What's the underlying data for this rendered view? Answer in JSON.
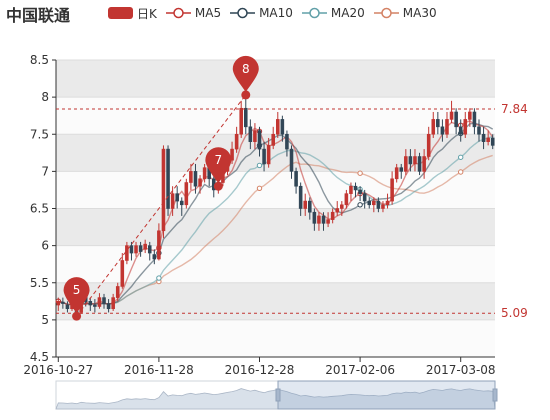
{
  "chart_data": {
    "type": "candlestick",
    "title": "中国联通",
    "legend": [
      {
        "name": "日K",
        "color": "#c23531"
      },
      {
        "name": "MA5",
        "color": "#c23531"
      },
      {
        "name": "MA10",
        "color": "#2f4554"
      },
      {
        "name": "MA20",
        "color": "#61a0a8"
      },
      {
        "name": "MA30",
        "color": "#d48265"
      }
    ],
    "ylim": [
      4.5,
      8.5
    ],
    "yticks": [
      "4.5",
      "5",
      "5.5",
      "6",
      "6.5",
      "7",
      "7.5",
      "8",
      "8.5"
    ],
    "xticks": [
      {
        "index": 0,
        "label": "2016-10-27"
      },
      {
        "index": 22,
        "label": "2016-11-28"
      },
      {
        "index": 44,
        "label": "2016-12-28"
      },
      {
        "index": 66,
        "label": "2017-02-06"
      },
      {
        "index": 88,
        "label": "2017-03-08"
      }
    ],
    "mark_lines": [
      {
        "value": 7.84,
        "label": "7.84"
      },
      {
        "value": 5.09,
        "label": "5.09"
      }
    ],
    "mark_points": [
      {
        "index": 4,
        "value": 5.05,
        "label": "5"
      },
      {
        "index": 35,
        "value": 6.8,
        "label": "7"
      },
      {
        "index": 41,
        "value": 8.03,
        "label": "8"
      }
    ],
    "ohlc": [
      [
        5.2,
        5.25,
        5.12,
        5.3
      ],
      [
        5.24,
        5.22,
        5.15,
        5.3
      ],
      [
        5.2,
        5.15,
        5.1,
        5.25
      ],
      [
        5.15,
        5.22,
        5.12,
        5.28
      ],
      [
        5.2,
        5.1,
        5.05,
        5.35
      ],
      [
        5.1,
        5.35,
        5.08,
        5.45
      ],
      [
        5.32,
        5.24,
        5.18,
        5.4
      ],
      [
        5.25,
        5.2,
        5.12,
        5.3
      ],
      [
        5.2,
        5.18,
        5.1,
        5.28
      ],
      [
        5.18,
        5.3,
        5.15,
        5.36
      ],
      [
        5.3,
        5.22,
        5.15,
        5.35
      ],
      [
        5.22,
        5.15,
        5.1,
        5.28
      ],
      [
        5.15,
        5.3,
        5.12,
        5.35
      ],
      [
        5.3,
        5.45,
        5.25,
        5.5
      ],
      [
        5.45,
        5.8,
        5.42,
        5.9
      ],
      [
        5.8,
        6.0,
        5.75,
        6.05
      ],
      [
        6.0,
        5.9,
        5.8,
        6.05
      ],
      [
        5.9,
        6.0,
        5.85,
        6.05
      ],
      [
        6.0,
        5.92,
        5.85,
        6.05
      ],
      [
        5.95,
        6.02,
        5.9,
        6.08
      ],
      [
        6.0,
        5.9,
        5.8,
        6.05
      ],
      [
        5.88,
        5.82,
        5.75,
        5.95
      ],
      [
        5.82,
        6.2,
        5.8,
        6.3
      ],
      [
        6.2,
        7.3,
        6.1,
        7.35
      ],
      [
        7.3,
        6.5,
        6.4,
        7.35
      ],
      [
        6.5,
        6.7,
        6.4,
        6.8
      ],
      [
        6.7,
        6.6,
        6.5,
        6.8
      ],
      [
        6.6,
        6.55,
        6.4,
        6.65
      ],
      [
        6.55,
        6.85,
        6.5,
        6.9
      ],
      [
        6.85,
        7.0,
        6.75,
        7.1
      ],
      [
        7.0,
        6.8,
        6.7,
        7.1
      ],
      [
        6.8,
        6.9,
        6.7,
        6.95
      ],
      [
        6.9,
        7.05,
        6.85,
        7.1
      ],
      [
        7.05,
        6.9,
        6.8,
        7.1
      ],
      [
        6.9,
        6.75,
        6.65,
        6.95
      ],
      [
        6.75,
        6.85,
        6.7,
        6.9
      ],
      [
        6.85,
        7.0,
        6.8,
        7.05
      ],
      [
        7.0,
        7.15,
        6.95,
        7.2
      ],
      [
        7.15,
        7.3,
        7.1,
        7.4
      ],
      [
        7.3,
        7.5,
        7.25,
        7.6
      ],
      [
        7.5,
        7.85,
        7.45,
        7.95
      ],
      [
        7.85,
        7.6,
        7.5,
        8.05
      ],
      [
        7.6,
        7.4,
        7.3,
        7.7
      ],
      [
        7.4,
        7.55,
        7.3,
        7.65
      ],
      [
        7.55,
        7.3,
        7.2,
        7.6
      ],
      [
        7.3,
        7.1,
        7.0,
        7.4
      ],
      [
        7.1,
        7.35,
        7.05,
        7.45
      ],
      [
        7.35,
        7.5,
        7.3,
        7.6
      ],
      [
        7.5,
        7.7,
        7.45,
        7.8
      ],
      [
        7.7,
        7.5,
        7.4,
        7.75
      ],
      [
        7.5,
        7.3,
        7.2,
        7.55
      ],
      [
        7.3,
        7.0,
        6.9,
        7.35
      ],
      [
        7.0,
        6.8,
        6.7,
        7.05
      ],
      [
        6.8,
        6.5,
        6.4,
        6.85
      ],
      [
        6.5,
        6.6,
        6.4,
        6.7
      ],
      [
        6.6,
        6.45,
        6.35,
        6.65
      ],
      [
        6.45,
        6.3,
        6.2,
        6.5
      ],
      [
        6.3,
        6.4,
        6.2,
        6.45
      ],
      [
        6.4,
        6.3,
        6.2,
        6.45
      ],
      [
        6.3,
        6.35,
        6.25,
        6.45
      ],
      [
        6.35,
        6.45,
        6.3,
        6.5
      ],
      [
        6.45,
        6.5,
        6.4,
        6.6
      ],
      [
        6.5,
        6.55,
        6.4,
        6.6
      ],
      [
        6.55,
        6.7,
        6.5,
        6.75
      ],
      [
        6.7,
        6.8,
        6.6,
        6.85
      ],
      [
        6.8,
        6.75,
        6.65,
        6.85
      ],
      [
        6.75,
        6.7,
        6.6,
        6.8
      ],
      [
        6.7,
        6.6,
        6.5,
        6.75
      ],
      [
        6.6,
        6.55,
        6.5,
        6.65
      ],
      [
        6.55,
        6.6,
        6.45,
        6.65
      ],
      [
        6.6,
        6.5,
        6.45,
        6.65
      ],
      [
        6.5,
        6.55,
        6.45,
        6.6
      ],
      [
        6.55,
        6.6,
        6.5,
        6.7
      ],
      [
        6.6,
        6.9,
        6.55,
        7.0
      ],
      [
        6.9,
        7.05,
        6.85,
        7.1
      ],
      [
        7.05,
        7.0,
        6.9,
        7.1
      ],
      [
        7.0,
        7.2,
        6.95,
        7.3
      ],
      [
        7.2,
        7.1,
        7.0,
        7.3
      ],
      [
        7.1,
        7.2,
        7.0,
        7.3
      ],
      [
        7.2,
        7.0,
        6.95,
        7.25
      ],
      [
        7.0,
        7.2,
        6.9,
        7.3
      ],
      [
        7.2,
        7.5,
        7.15,
        7.6
      ],
      [
        7.5,
        7.7,
        7.45,
        7.8
      ],
      [
        7.7,
        7.6,
        7.5,
        7.8
      ],
      [
        7.6,
        7.5,
        7.4,
        7.7
      ],
      [
        7.5,
        7.7,
        7.45,
        7.8
      ],
      [
        7.7,
        7.8,
        7.65,
        7.95
      ],
      [
        7.8,
        7.6,
        7.5,
        7.85
      ],
      [
        7.6,
        7.5,
        7.4,
        7.7
      ],
      [
        7.5,
        7.7,
        7.45,
        7.8
      ],
      [
        7.7,
        7.8,
        7.6,
        7.85
      ],
      [
        7.8,
        7.6,
        7.5,
        7.85
      ],
      [
        7.6,
        7.5,
        7.4,
        7.7
      ],
      [
        7.5,
        7.4,
        7.3,
        7.6
      ],
      [
        7.4,
        7.45,
        7.35,
        7.55
      ],
      [
        7.45,
        7.35,
        7.3,
        7.5
      ]
    ]
  }
}
